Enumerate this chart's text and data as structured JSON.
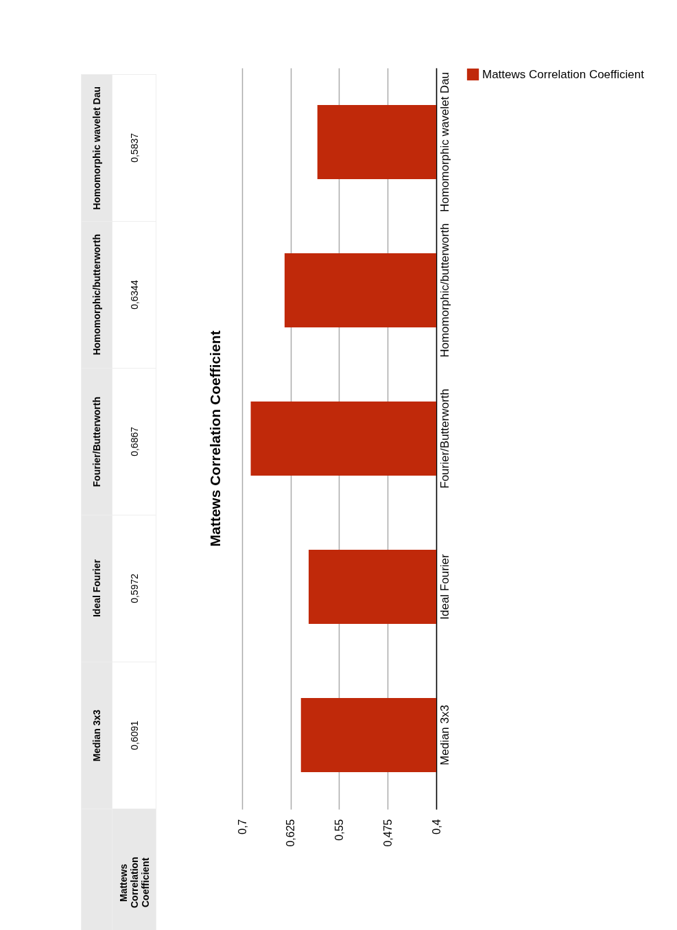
{
  "chart_data": {
    "type": "bar",
    "title": "Mattews Correlation Coefficient",
    "orientation": "horizontal",
    "categories": [
      "Homomorphic wavelet Dau",
      "Homomorphic/butterworth",
      "Fourier/Butterworth",
      "Ideal Fourier",
      "Median 3x3"
    ],
    "series": [
      {
        "name": "Mattews Correlation Coefficient",
        "color": "#c0290a",
        "values": [
          0.5837,
          0.6344,
          0.6867,
          0.5972,
          0.6091
        ],
        "value_labels": [
          "0,5837",
          "0,6344",
          "0,6867",
          "0,5972",
          "0,6091"
        ]
      }
    ],
    "xlim": [
      0.7,
      0.4
    ],
    "xticks": [
      {
        "value": 0.7,
        "label": "0,7"
      },
      {
        "value": 0.625,
        "label": "0,625"
      },
      {
        "value": 0.55,
        "label": "0,55"
      },
      {
        "value": 0.475,
        "label": "0,475"
      },
      {
        "value": 0.4,
        "label": "0,4"
      }
    ],
    "grid": "x",
    "legend": "right"
  }
}
